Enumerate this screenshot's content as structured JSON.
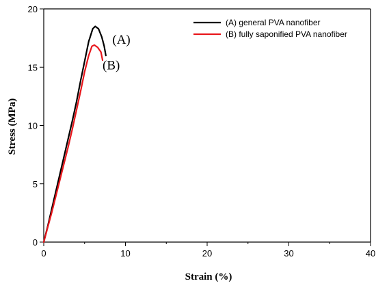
{
  "chart_data": {
    "type": "line",
    "xlabel": "Strain (%)",
    "ylabel": "Stress (MPa)",
    "xlim": [
      0,
      40
    ],
    "ylim": [
      0,
      20
    ],
    "xticks": [
      0,
      10,
      20,
      30,
      40
    ],
    "yticks": [
      0,
      5,
      10,
      15,
      20
    ],
    "grid": false,
    "legend_position": "top-right",
    "series": [
      {
        "name": "(A) general PVA nanofiber",
        "color": "#000000",
        "points": [
          [
            0,
            0
          ],
          [
            0.5,
            1.4
          ],
          [
            1.0,
            2.9
          ],
          [
            1.5,
            4.4
          ],
          [
            2.0,
            5.9
          ],
          [
            2.5,
            7.4
          ],
          [
            3.0,
            8.9
          ],
          [
            3.5,
            10.4
          ],
          [
            4.0,
            12.0
          ],
          [
            4.5,
            13.8
          ],
          [
            5.0,
            15.5
          ],
          [
            5.5,
            17.2
          ],
          [
            6.0,
            18.3
          ],
          [
            6.3,
            18.5
          ],
          [
            6.7,
            18.3
          ],
          [
            7.1,
            17.6
          ],
          [
            7.4,
            16.8
          ],
          [
            7.6,
            16.0
          ]
        ]
      },
      {
        "name": "(B) fully saponified PVA nanofiber",
        "color": "#e8161b",
        "points": [
          [
            0,
            0
          ],
          [
            0.5,
            1.3
          ],
          [
            1.0,
            2.6
          ],
          [
            1.5,
            4.0
          ],
          [
            2.0,
            5.4
          ],
          [
            2.5,
            6.8
          ],
          [
            3.0,
            8.2
          ],
          [
            3.5,
            9.7
          ],
          [
            4.0,
            11.3
          ],
          [
            4.5,
            12.9
          ],
          [
            5.0,
            14.6
          ],
          [
            5.5,
            16.0
          ],
          [
            5.9,
            16.8
          ],
          [
            6.2,
            16.9
          ],
          [
            6.6,
            16.7
          ],
          [
            7.0,
            16.3
          ],
          [
            7.2,
            15.6
          ]
        ]
      }
    ],
    "annotations": [
      {
        "text": "(A)",
        "x": 8.4,
        "y": 17.0
      },
      {
        "text": "(B)",
        "x": 7.2,
        "y": 14.8
      }
    ]
  }
}
